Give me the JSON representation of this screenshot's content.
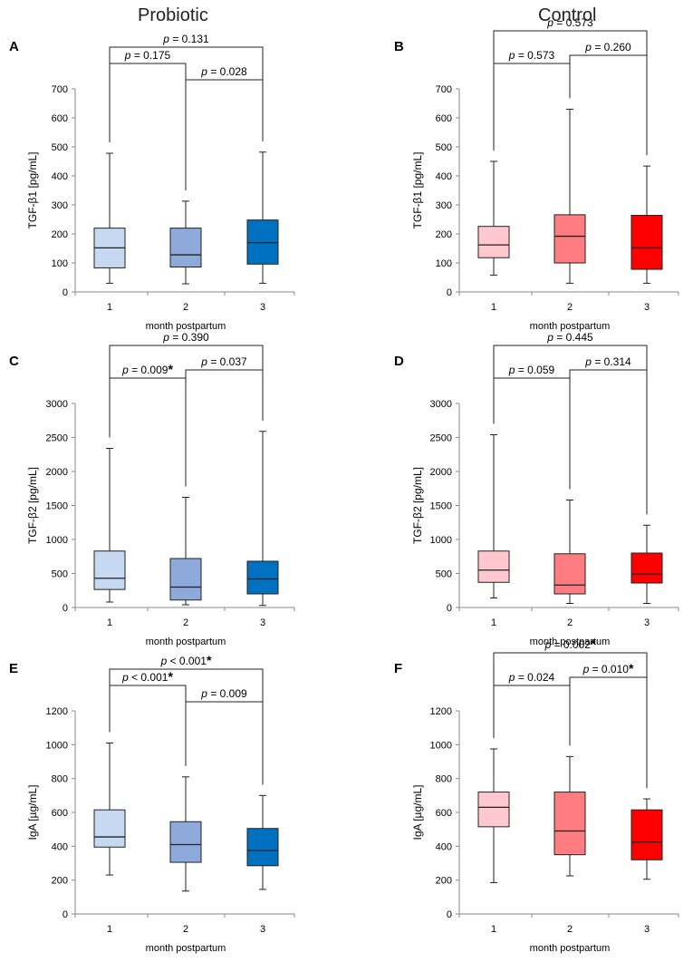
{
  "column_titles": {
    "left": "Probiotic",
    "right": "Control"
  },
  "colors": {
    "blue": [
      "#c6d9f1",
      "#8eaadb",
      "#0070c0"
    ],
    "red": [
      "#ffc7ce",
      "#ff7c80",
      "#ff0000"
    ]
  },
  "chart_data": [
    {
      "panel": "A",
      "type": "box",
      "group": "Probiotic",
      "ylabel": "TGF-β1 [pg/mL]",
      "xlabel": "month postpartum",
      "categories": [
        "1",
        "2",
        "3"
      ],
      "ylim": [
        0,
        700
      ],
      "yticks": [
        0,
        100,
        200,
        300,
        400,
        500,
        600,
        700
      ],
      "boxes": [
        {
          "min": 30,
          "q1": 83,
          "median": 152,
          "q3": 220,
          "max": 478
        },
        {
          "min": 28,
          "q1": 86,
          "median": 128,
          "q3": 220,
          "max": 313
        },
        {
          "min": 30,
          "q1": 96,
          "median": 170,
          "q3": 248,
          "max": 482
        }
      ],
      "palette": "blue",
      "comparisons": [
        {
          "from": 1,
          "to": 2,
          "label": "p = 0.175",
          "sig": "",
          "level": 1
        },
        {
          "from": 2,
          "to": 3,
          "label": "p = 0.028",
          "sig": "",
          "level": 0
        },
        {
          "from": 1,
          "to": 3,
          "label": "p = 0.131",
          "sig": "",
          "level": 2
        }
      ]
    },
    {
      "panel": "B",
      "type": "box",
      "group": "Control",
      "ylabel": "TGF-β1 [pg/mL]",
      "xlabel": "month postpartum",
      "categories": [
        "1",
        "2",
        "3"
      ],
      "ylim": [
        0,
        700
      ],
      "yticks": [
        0,
        100,
        200,
        300,
        400,
        500,
        600,
        700
      ],
      "boxes": [
        {
          "min": 58,
          "q1": 118,
          "median": 162,
          "q3": 226,
          "max": 450
        },
        {
          "min": 30,
          "q1": 100,
          "median": 192,
          "q3": 266,
          "max": 630
        },
        {
          "min": 30,
          "q1": 78,
          "median": 152,
          "q3": 264,
          "max": 434
        }
      ],
      "palette": "red",
      "comparisons": [
        {
          "from": 1,
          "to": 2,
          "label": "p = 0.573",
          "sig": "",
          "level": 1
        },
        {
          "from": 2,
          "to": 3,
          "label": "p = 0.260",
          "sig": "",
          "level": 1.5
        },
        {
          "from": 1,
          "to": 3,
          "label": "p = 0.573",
          "sig": "",
          "level": 3
        }
      ]
    },
    {
      "panel": "C",
      "type": "box",
      "group": "Probiotic",
      "ylabel": "TGF-β2 [pg/mL]",
      "xlabel": "month postpartum",
      "categories": [
        "1",
        "2",
        "3"
      ],
      "ylim": [
        0,
        3000
      ],
      "yticks": [
        0,
        500,
        1000,
        1500,
        2000,
        2500,
        3000
      ],
      "boxes": [
        {
          "min": 80,
          "q1": 265,
          "median": 430,
          "q3": 830,
          "max": 2340
        },
        {
          "min": 40,
          "q1": 110,
          "median": 300,
          "q3": 720,
          "max": 1620
        },
        {
          "min": 30,
          "q1": 200,
          "median": 420,
          "q3": 680,
          "max": 2590
        }
      ],
      "palette": "blue",
      "comparisons": [
        {
          "from": 1,
          "to": 2,
          "label": "p = 0.009",
          "sig": "*",
          "level": 1
        },
        {
          "from": 2,
          "to": 3,
          "label": "p = 0.037",
          "sig": "",
          "level": 1.5
        },
        {
          "from": 1,
          "to": 3,
          "label": "p = 0.390",
          "sig": "",
          "level": 3
        }
      ]
    },
    {
      "panel": "D",
      "type": "box",
      "group": "Control",
      "ylabel": "TGF-β2 [pg/mL]",
      "xlabel": "month postpartum",
      "categories": [
        "1",
        "2",
        "3"
      ],
      "ylim": [
        0,
        3000
      ],
      "yticks": [
        0,
        500,
        1000,
        1500,
        2000,
        2500,
        3000
      ],
      "boxes": [
        {
          "min": 140,
          "q1": 370,
          "median": 550,
          "q3": 830,
          "max": 2540
        },
        {
          "min": 60,
          "q1": 200,
          "median": 330,
          "q3": 790,
          "max": 1580
        },
        {
          "min": 60,
          "q1": 360,
          "median": 490,
          "q3": 800,
          "max": 1210
        }
      ],
      "palette": "red",
      "comparisons": [
        {
          "from": 1,
          "to": 2,
          "label": "p = 0.059",
          "sig": "",
          "level": 1
        },
        {
          "from": 2,
          "to": 3,
          "label": "p = 0.314",
          "sig": "",
          "level": 1.5
        },
        {
          "from": 1,
          "to": 3,
          "label": "p = 0.445",
          "sig": "",
          "level": 3
        }
      ]
    },
    {
      "panel": "E",
      "type": "box",
      "group": "Probiotic",
      "ylabel": "IgA [µg/mL]",
      "xlabel": "month postpartum",
      "categories": [
        "1",
        "2",
        "3"
      ],
      "ylim": [
        0,
        1200
      ],
      "yticks": [
        0,
        200,
        400,
        600,
        800,
        1000,
        1200
      ],
      "boxes": [
        {
          "min": 230,
          "q1": 395,
          "median": 455,
          "q3": 615,
          "max": 1010
        },
        {
          "min": 135,
          "q1": 305,
          "median": 410,
          "q3": 545,
          "max": 810
        },
        {
          "min": 145,
          "q1": 285,
          "median": 375,
          "q3": 505,
          "max": 700
        }
      ],
      "palette": "blue",
      "comparisons": [
        {
          "from": 1,
          "to": 2,
          "label": "p < 0.001",
          "sig": "*",
          "level": 1
        },
        {
          "from": 2,
          "to": 3,
          "label": "p = 0.009",
          "sig": "",
          "level": 0
        },
        {
          "from": 1,
          "to": 3,
          "label": "p < 0.001",
          "sig": "*",
          "level": 2
        }
      ]
    },
    {
      "panel": "F",
      "type": "box",
      "group": "Control",
      "ylabel": "IgA [µg/mL]",
      "xlabel": "month postpartum",
      "categories": [
        "1",
        "2",
        "3"
      ],
      "ylim": [
        0,
        1200
      ],
      "yticks": [
        0,
        200,
        400,
        600,
        800,
        1000,
        1200
      ],
      "boxes": [
        {
          "min": 185,
          "q1": 515,
          "median": 630,
          "q3": 720,
          "max": 975
        },
        {
          "min": 225,
          "q1": 350,
          "median": 490,
          "q3": 720,
          "max": 930
        },
        {
          "min": 205,
          "q1": 320,
          "median": 425,
          "q3": 615,
          "max": 680
        }
      ],
      "palette": "red",
      "comparisons": [
        {
          "from": 1,
          "to": 2,
          "label": "p = 0.024",
          "sig": "",
          "level": 1
        },
        {
          "from": 2,
          "to": 3,
          "label": "p = 0.010",
          "sig": "*",
          "level": 1.5
        },
        {
          "from": 1,
          "to": 3,
          "label": "p = 0.002",
          "sig": "*",
          "level": 3
        }
      ]
    }
  ]
}
